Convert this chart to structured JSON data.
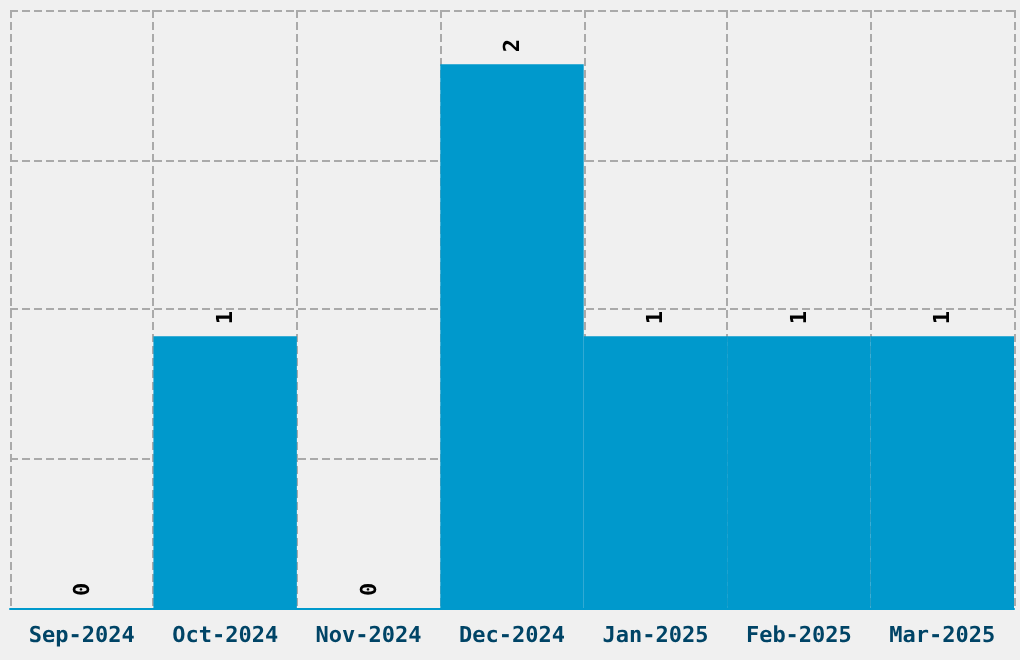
{
  "chart_data": {
    "type": "bar",
    "categories": [
      "Sep-2024",
      "Oct-2024",
      "Nov-2024",
      "Dec-2024",
      "Jan-2025",
      "Feb-2025",
      "Mar-2025"
    ],
    "values": [
      0,
      1,
      0,
      2,
      1,
      1,
      1
    ],
    "color": "#0099cc",
    "ylim": [
      0,
      2.2
    ],
    "yticks": [
      {
        "value": 0,
        "label": null
      },
      {
        "value": 0.55,
        "label": null
      },
      {
        "value": 1.1,
        "label": null
      },
      {
        "value": 1.65,
        "label": null
      },
      {
        "value": 2.2,
        "label": null
      }
    ],
    "tick_labels": "x",
    "grid": true,
    "data_labels": true
  }
}
